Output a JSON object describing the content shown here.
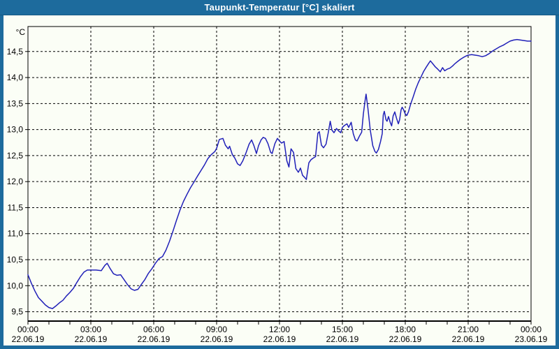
{
  "window": {
    "title": "Taupunkt-Temperatur [°C] skaliert"
  },
  "colors": {
    "titlebar": "#1d6b9d",
    "window_border": "#1d6b9d",
    "background": "#fbfef6",
    "plot_border": "#000000",
    "grid": "#000000",
    "axis_text": "#000000",
    "title_text": "#ffffff",
    "line": "#2020b8"
  },
  "chart_data": {
    "type": "line",
    "title": "Taupunkt-Temperatur [°C] skaliert",
    "unit_label": "°C",
    "ylabel": "°C",
    "xlabel": "",
    "grid": "dashed",
    "legend": "none",
    "xlim_hours": [
      0,
      24
    ],
    "ylim": [
      9.32,
      14.98
    ],
    "y_ticks": [
      {
        "value": 14.5,
        "label": "14,5"
      },
      {
        "value": 14.0,
        "label": "14,0"
      },
      {
        "value": 13.5,
        "label": "13,5"
      },
      {
        "value": 13.0,
        "label": "13,0"
      },
      {
        "value": 12.5,
        "label": "12,5"
      },
      {
        "value": 12.0,
        "label": "12,0"
      },
      {
        "value": 11.5,
        "label": "11,5"
      },
      {
        "value": 11.0,
        "label": "11,0"
      },
      {
        "value": 10.5,
        "label": "10,5"
      },
      {
        "value": 10.0,
        "label": "10,0"
      },
      {
        "value": 9.5,
        "label": "9,5"
      }
    ],
    "x_ticks": [
      {
        "hour": 0,
        "time": "00:00",
        "date": "22.06.19"
      },
      {
        "hour": 3,
        "time": "03:00",
        "date": "22.06.19"
      },
      {
        "hour": 6,
        "time": "06:00",
        "date": "22.06.19"
      },
      {
        "hour": 9,
        "time": "09:00",
        "date": "22.06.19"
      },
      {
        "hour": 12,
        "time": "12:00",
        "date": "22.06.19"
      },
      {
        "hour": 15,
        "time": "15:00",
        "date": "22.06.19"
      },
      {
        "hour": 18,
        "time": "18:00",
        "date": "22.06.19"
      },
      {
        "hour": 21,
        "time": "21:00",
        "date": "22.06.19"
      },
      {
        "hour": 24,
        "time": "00:00",
        "date": "23.06.19"
      }
    ],
    "minor_x_tick_interval_hours": 1,
    "series": [
      {
        "name": "Taupunkt-Temperatur",
        "points": [
          [
            0,
            10.21
          ],
          [
            0.17,
            10.04
          ],
          [
            0.33,
            9.9
          ],
          [
            0.5,
            9.77
          ],
          [
            0.67,
            9.7
          ],
          [
            0.83,
            9.63
          ],
          [
            1,
            9.58
          ],
          [
            1.17,
            9.56
          ],
          [
            1.33,
            9.61
          ],
          [
            1.5,
            9.67
          ],
          [
            1.67,
            9.72
          ],
          [
            1.83,
            9.8
          ],
          [
            2,
            9.87
          ],
          [
            2.17,
            9.95
          ],
          [
            2.33,
            10.06
          ],
          [
            2.5,
            10.17
          ],
          [
            2.67,
            10.26
          ],
          [
            2.83,
            10.3
          ],
          [
            3,
            10.3
          ],
          [
            3.25,
            10.3
          ],
          [
            3.5,
            10.29
          ],
          [
            3.67,
            10.39
          ],
          [
            3.78,
            10.43
          ],
          [
            3.92,
            10.33
          ],
          [
            4.08,
            10.23
          ],
          [
            4.25,
            10.2
          ],
          [
            4.42,
            10.21
          ],
          [
            4.58,
            10.12
          ],
          [
            4.75,
            10.02
          ],
          [
            4.92,
            9.94
          ],
          [
            5.08,
            9.91
          ],
          [
            5.25,
            9.93
          ],
          [
            5.42,
            10.03
          ],
          [
            5.58,
            10.12
          ],
          [
            5.75,
            10.24
          ],
          [
            5.92,
            10.33
          ],
          [
            6.08,
            10.43
          ],
          [
            6.25,
            10.52
          ],
          [
            6.42,
            10.56
          ],
          [
            6.58,
            10.68
          ],
          [
            6.75,
            10.85
          ],
          [
            6.92,
            11.05
          ],
          [
            7.08,
            11.25
          ],
          [
            7.25,
            11.45
          ],
          [
            7.42,
            11.62
          ],
          [
            7.58,
            11.75
          ],
          [
            7.75,
            11.88
          ],
          [
            7.92,
            11.99
          ],
          [
            8.08,
            12.1
          ],
          [
            8.25,
            12.21
          ],
          [
            8.42,
            12.32
          ],
          [
            8.58,
            12.44
          ],
          [
            8.75,
            12.52
          ],
          [
            8.92,
            12.58
          ],
          [
            9,
            12.64
          ],
          [
            9.13,
            12.81
          ],
          [
            9.3,
            12.83
          ],
          [
            9.42,
            12.7
          ],
          [
            9.55,
            12.63
          ],
          [
            9.62,
            12.68
          ],
          [
            9.75,
            12.52
          ],
          [
            9.87,
            12.45
          ],
          [
            10,
            12.34
          ],
          [
            10.12,
            12.31
          ],
          [
            10.25,
            12.4
          ],
          [
            10.4,
            12.55
          ],
          [
            10.55,
            12.72
          ],
          [
            10.67,
            12.8
          ],
          [
            10.78,
            12.69
          ],
          [
            10.9,
            12.54
          ],
          [
            11,
            12.69
          ],
          [
            11.12,
            12.8
          ],
          [
            11.22,
            12.85
          ],
          [
            11.33,
            12.83
          ],
          [
            11.45,
            12.73
          ],
          [
            11.58,
            12.56
          ],
          [
            11.65,
            12.54
          ],
          [
            11.78,
            12.73
          ],
          [
            11.9,
            12.83
          ],
          [
            12,
            12.78
          ],
          [
            12.1,
            12.74
          ],
          [
            12.22,
            12.77
          ],
          [
            12.35,
            12.4
          ],
          [
            12.45,
            12.28
          ],
          [
            12.55,
            12.63
          ],
          [
            12.67,
            12.56
          ],
          [
            12.78,
            12.25
          ],
          [
            12.9,
            12.18
          ],
          [
            13,
            12.26
          ],
          [
            13.1,
            12.12
          ],
          [
            13.2,
            12.08
          ],
          [
            13.28,
            12.04
          ],
          [
            13.4,
            12.36
          ],
          [
            13.5,
            12.42
          ],
          [
            13.6,
            12.45
          ],
          [
            13.72,
            12.48
          ],
          [
            13.83,
            12.93
          ],
          [
            13.9,
            12.96
          ],
          [
            14,
            12.7
          ],
          [
            14.1,
            12.65
          ],
          [
            14.22,
            12.72
          ],
          [
            14.33,
            12.95
          ],
          [
            14.42,
            13.16
          ],
          [
            14.5,
            12.99
          ],
          [
            14.6,
            12.94
          ],
          [
            14.72,
            13.02
          ],
          [
            14.83,
            12.97
          ],
          [
            14.92,
            12.94
          ],
          [
            15,
            13.04
          ],
          [
            15.1,
            13.08
          ],
          [
            15.22,
            13.11
          ],
          [
            15.3,
            13.04
          ],
          [
            15.42,
            13.14
          ],
          [
            15.52,
            12.92
          ],
          [
            15.62,
            12.8
          ],
          [
            15.7,
            12.78
          ],
          [
            15.82,
            12.88
          ],
          [
            15.92,
            12.95
          ],
          [
            16,
            13.3
          ],
          [
            16.08,
            13.55
          ],
          [
            16.13,
            13.68
          ],
          [
            16.22,
            13.4
          ],
          [
            16.33,
            12.99
          ],
          [
            16.45,
            12.69
          ],
          [
            16.55,
            12.58
          ],
          [
            16.62,
            12.55
          ],
          [
            16.72,
            12.62
          ],
          [
            16.82,
            12.77
          ],
          [
            16.9,
            12.92
          ],
          [
            16.95,
            13.28
          ],
          [
            17,
            13.35
          ],
          [
            17.08,
            13.19
          ],
          [
            17.13,
            13.16
          ],
          [
            17.2,
            13.25
          ],
          [
            17.28,
            13.14
          ],
          [
            17.35,
            13.07
          ],
          [
            17.42,
            13.26
          ],
          [
            17.5,
            13.34
          ],
          [
            17.58,
            13.22
          ],
          [
            17.67,
            13.11
          ],
          [
            17.73,
            13.19
          ],
          [
            17.8,
            13.38
          ],
          [
            17.85,
            13.43
          ],
          [
            17.92,
            13.38
          ],
          [
            18,
            13.3
          ],
          [
            18.07,
            13.27
          ],
          [
            18.15,
            13.34
          ],
          [
            18.25,
            13.48
          ],
          [
            18.37,
            13.62
          ],
          [
            18.5,
            13.78
          ],
          [
            18.62,
            13.9
          ],
          [
            18.75,
            14.01
          ],
          [
            18.88,
            14.12
          ],
          [
            19,
            14.2
          ],
          [
            19.13,
            14.28
          ],
          [
            19.2,
            14.32
          ],
          [
            19.3,
            14.27
          ],
          [
            19.42,
            14.21
          ],
          [
            19.55,
            14.16
          ],
          [
            19.67,
            14.11
          ],
          [
            19.78,
            14.19
          ],
          [
            19.88,
            14.13
          ],
          [
            20,
            14.16
          ],
          [
            20.13,
            14.18
          ],
          [
            20.25,
            14.22
          ],
          [
            20.38,
            14.27
          ],
          [
            20.5,
            14.31
          ],
          [
            20.63,
            14.35
          ],
          [
            20.75,
            14.38
          ],
          [
            20.88,
            14.41
          ],
          [
            21,
            14.43
          ],
          [
            21.17,
            14.44
          ],
          [
            21.33,
            14.43
          ],
          [
            21.5,
            14.42
          ],
          [
            21.67,
            14.4
          ],
          [
            21.83,
            14.42
          ],
          [
            22,
            14.46
          ],
          [
            22.17,
            14.51
          ],
          [
            22.33,
            14.55
          ],
          [
            22.5,
            14.59
          ],
          [
            22.67,
            14.62
          ],
          [
            22.83,
            14.66
          ],
          [
            23,
            14.7
          ],
          [
            23.17,
            14.72
          ],
          [
            23.33,
            14.73
          ],
          [
            23.5,
            14.72
          ],
          [
            23.67,
            14.71
          ],
          [
            23.83,
            14.7
          ],
          [
            24,
            14.7
          ]
        ]
      }
    ]
  }
}
